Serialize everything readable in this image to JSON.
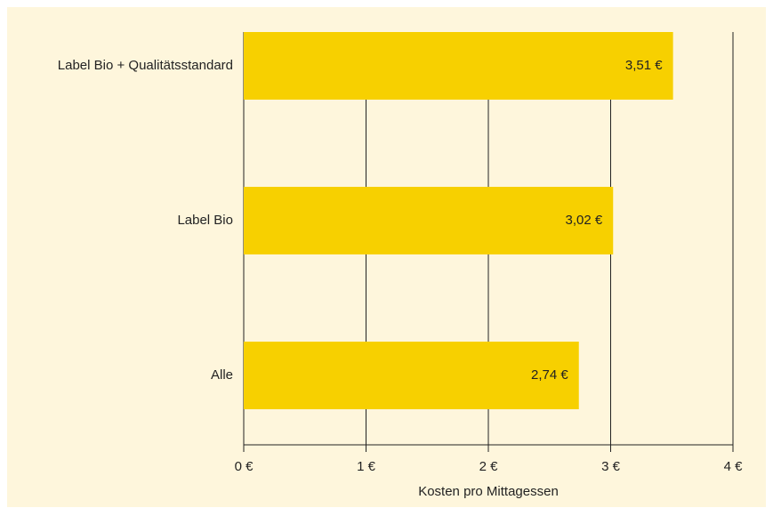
{
  "chart_data": {
    "type": "barh",
    "categories": [
      "Label Bio + Qualitätsstandard",
      "Label Bio",
      "Alle"
    ],
    "values": [
      3.51,
      3.02,
      2.74
    ],
    "value_labels": [
      "3,51 €",
      "3,02 €",
      "2,74 €"
    ],
    "color": "#f7d000",
    "xlabel": "Kosten pro Mittagessen",
    "xlim": [
      0,
      4
    ],
    "xticks": [
      {
        "value": 0,
        "label": "0 €"
      },
      {
        "value": 1,
        "label": "1 €"
      },
      {
        "value": 2,
        "label": "2 €"
      },
      {
        "value": 3,
        "label": "3 €"
      },
      {
        "value": 4,
        "label": "4 €"
      }
    ],
    "grid": true
  }
}
